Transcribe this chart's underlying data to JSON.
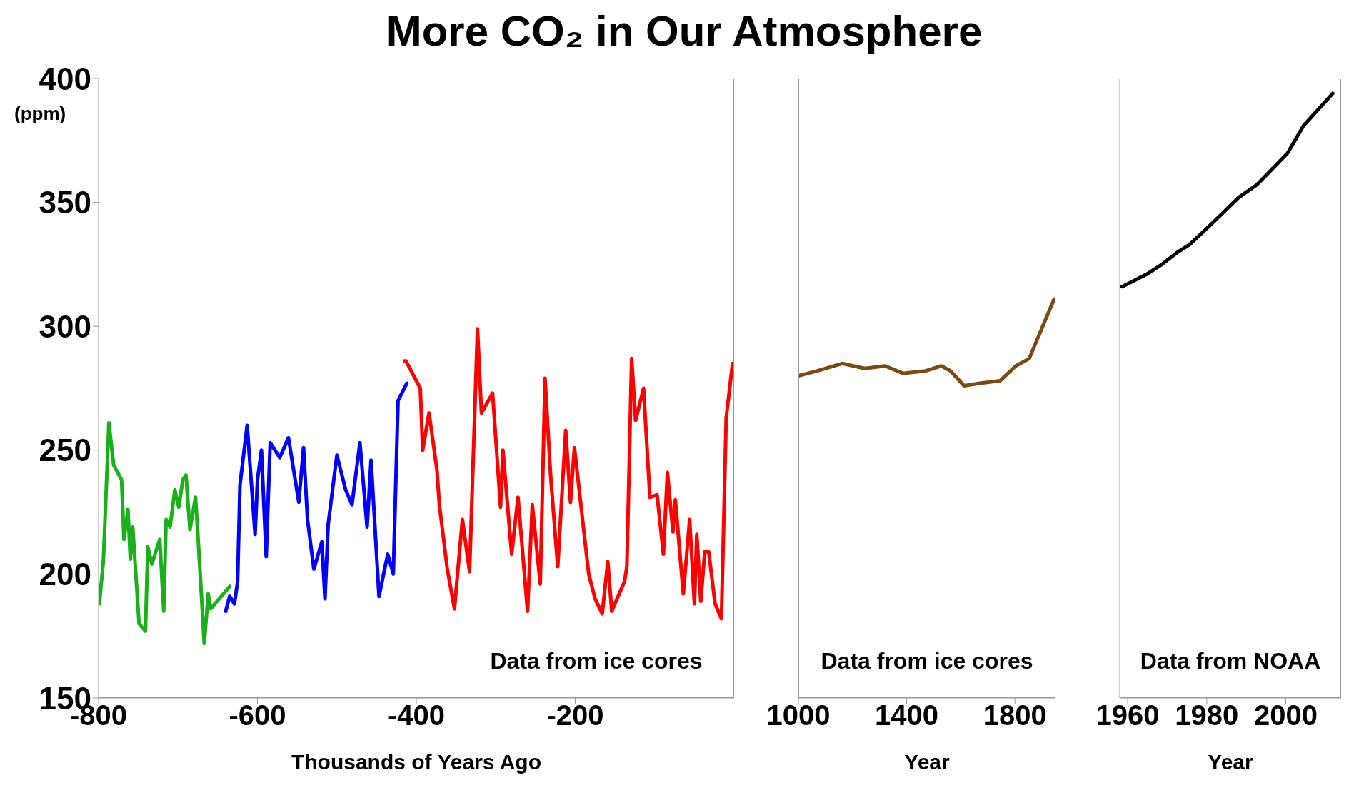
{
  "chart_data": [
    {
      "type": "line",
      "title": "More CO₂ in Our Atmosphere",
      "xlabel": "Thousands of Years Ago",
      "ylabel": "(ppm)",
      "xlim": [
        -800,
        0
      ],
      "xticks": [
        -800,
        -600,
        -400,
        -200
      ],
      "ylim": [
        150,
        400
      ],
      "yticks": [
        150,
        200,
        250,
        300,
        350,
        400
      ],
      "grid": false,
      "legend": false,
      "annotations": [
        "Data from ice cores"
      ],
      "series": [
        {
          "color": "#1ab01a",
          "x": [
            -799,
            -794,
            -787,
            -781,
            -771,
            -768,
            -763,
            -760,
            -757,
            -749,
            -741,
            -738,
            -733,
            -723,
            -718,
            -715,
            -710,
            -704,
            -699,
            -694,
            -690,
            -685,
            -678,
            -675,
            -667,
            -662,
            -659,
            -635
          ],
          "values": [
            188,
            205,
            261,
            244,
            238,
            214,
            226,
            206,
            219,
            180,
            177,
            211,
            204,
            214,
            185,
            222,
            219,
            234,
            227,
            238,
            240,
            218,
            231,
            216,
            172,
            192,
            186,
            195
          ]
        },
        {
          "color": "#0000ff",
          "x": [
            -640,
            -635,
            -629,
            -625,
            -622,
            -613,
            -603,
            -600,
            -595,
            -589,
            -584,
            -572,
            -561,
            -548,
            -542,
            -537,
            -529,
            -519,
            -515,
            -511,
            -500,
            -489,
            -481,
            -471,
            -462,
            -457,
            -447,
            -436,
            -429,
            -423,
            -412
          ],
          "values": [
            185,
            191,
            188,
            197,
            236,
            260,
            216,
            238,
            250,
            207,
            253,
            247,
            255,
            229,
            251,
            222,
            202,
            213,
            190,
            220,
            248,
            234,
            228,
            253,
            219,
            246,
            191,
            208,
            200,
            270,
            277
          ]
        },
        {
          "color": "#ff0000",
          "x": [
            -415,
            -413,
            -395,
            -392,
            -384,
            -374,
            -371,
            -361,
            -352,
            -342,
            -333,
            -323,
            -318,
            -304,
            -294,
            -291,
            -280,
            -272,
            -260,
            -254,
            -244,
            -238,
            -231,
            -222,
            -212,
            -206,
            -201,
            -183,
            -175,
            -166,
            -159,
            -154,
            -138,
            -135,
            -129,
            -124,
            -114,
            -106,
            -97,
            -89,
            -84,
            -77,
            -74,
            -64,
            -56,
            -50,
            -47,
            -42,
            -37,
            -32,
            -24,
            -16,
            -10,
            -2
          ],
          "values": [
            286,
            286,
            275,
            250,
            265,
            242,
            228,
            202,
            186,
            222,
            201,
            299,
            265,
            273,
            227,
            250,
            208,
            231,
            185,
            228,
            196,
            279,
            240,
            203,
            258,
            229,
            251,
            200,
            190,
            184,
            205,
            185,
            197,
            203,
            287,
            262,
            275,
            231,
            232,
            208,
            241,
            217,
            230,
            192,
            222,
            188,
            216,
            189,
            209,
            209,
            188,
            182,
            263,
            285
          ]
        }
      ]
    },
    {
      "type": "line",
      "xlabel": "Year",
      "xlim": [
        1000,
        1950
      ],
      "xticks": [
        1000,
        1400,
        1800
      ],
      "ylim": [
        150,
        400
      ],
      "yticks": [
        150,
        200,
        250,
        300,
        350,
        400
      ],
      "tick_labels": "x",
      "grid": false,
      "legend": false,
      "annotations": [
        "Data from ice cores"
      ],
      "series": [
        {
          "color": "#7b4a12",
          "x": [
            1000,
            1070,
            1162,
            1245,
            1320,
            1387,
            1470,
            1528,
            1562,
            1612,
            1670,
            1745,
            1803,
            1853,
            1945
          ],
          "values": [
            280,
            282,
            285,
            283,
            284,
            281,
            282,
            284,
            282,
            276,
            277,
            278,
            284,
            287,
            311
          ]
        }
      ]
    },
    {
      "type": "line",
      "xlabel": "Year",
      "xlim": [
        1958,
        2014
      ],
      "xticks": [
        1960,
        1980,
        2000
      ],
      "ylim": [
        150,
        400
      ],
      "yticks": [
        150,
        200,
        250,
        300,
        350,
        400
      ],
      "tick_labels": "x",
      "grid": false,
      "legend": false,
      "annotations": [
        "Data from NOAA"
      ],
      "series": [
        {
          "color": "#000000",
          "x": [
            1958.6,
            1964.8,
            1968.7,
            1972.7,
            1975.7,
            1979.7,
            1983.6,
            1988.1,
            1992.6,
            1997.5,
            2000.5,
            2004.5,
            2008.5,
            2011.9
          ],
          "values": [
            316,
            321,
            325,
            330,
            333,
            339,
            345,
            352,
            357,
            365,
            370,
            381,
            388,
            394
          ]
        }
      ]
    }
  ]
}
